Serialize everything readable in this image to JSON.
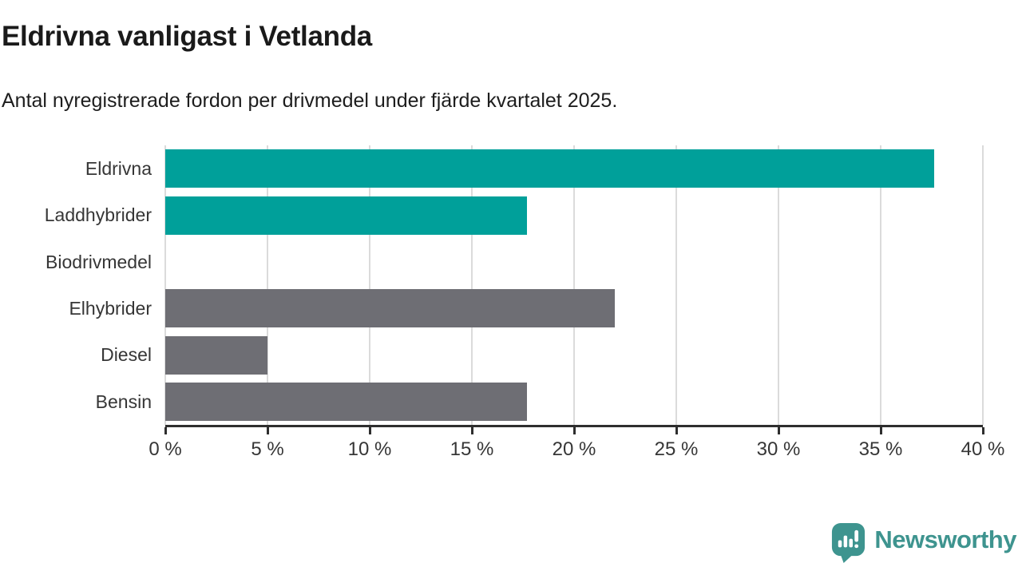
{
  "header": {
    "title": "Eldrivna vanligast i Vetlanda",
    "subtitle": "Antal nyregistrerade fordon per drivmedel under fjärde kvartalet 2025."
  },
  "chart_data": {
    "type": "bar",
    "orientation": "horizontal",
    "title": "Eldrivna vanligast i Vetlanda",
    "subtitle": "Antal nyregistrerade fordon per drivmedel under fjärde kvartalet 2025.",
    "categories": [
      "Eldrivna",
      "Laddhybrider",
      "Biodrivmedel",
      "Elhybrider",
      "Diesel",
      "Bensin"
    ],
    "values": [
      37.6,
      17.7,
      0,
      22.0,
      5.0,
      17.7
    ],
    "unit": "%",
    "bar_colors": [
      "#00a09a",
      "#00a09a",
      "#6e6e74",
      "#6e6e74",
      "#6e6e74",
      "#6e6e74"
    ],
    "xlim": [
      0,
      40
    ],
    "xticks": [
      0,
      5,
      10,
      15,
      20,
      25,
      30,
      35,
      40
    ],
    "xtick_labels": [
      "0 %",
      "5 %",
      "10 %",
      "15 %",
      "20 %",
      "25 %",
      "30 %",
      "35 %",
      "40 %"
    ],
    "grid": true,
    "legend": false,
    "xlabel": "",
    "ylabel": ""
  },
  "colors": {
    "accent_teal": "#00a09a",
    "neutral_gray": "#6e6e74",
    "gridline": "#dbdbdb",
    "axis": "#2e2e2e",
    "brand_teal": "#3e948f"
  },
  "footer": {
    "brand_name": "Newsworthy"
  }
}
